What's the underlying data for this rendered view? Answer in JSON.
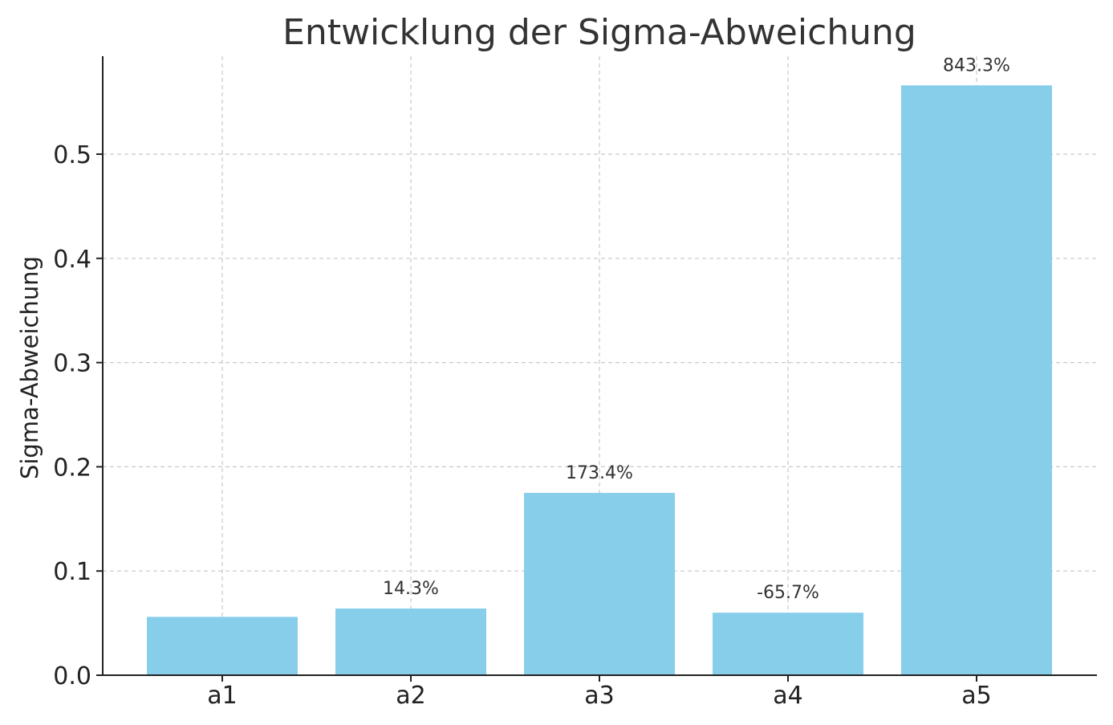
{
  "chart_data": {
    "type": "bar",
    "title": "Entwicklung der Sigma-Abweichung",
    "xlabel": "",
    "ylabel": "Sigma-Abweichung",
    "categories": [
      "a1",
      "a2",
      "a3",
      "a4",
      "a5"
    ],
    "values": [
      0.056,
      0.064,
      0.175,
      0.06,
      0.566
    ],
    "data_labels": [
      "",
      "14.3%",
      "173.4%",
      "-65.7%",
      "843.3%"
    ],
    "yticks": [
      0.0,
      0.1,
      0.2,
      0.3,
      0.4,
      0.5
    ],
    "ytick_labels": [
      "0.0",
      "0.1",
      "0.2",
      "0.3",
      "0.4",
      "0.5"
    ],
    "ylim": [
      0,
      0.594
    ],
    "grid": true,
    "bar_color": "#87CEEB"
  }
}
